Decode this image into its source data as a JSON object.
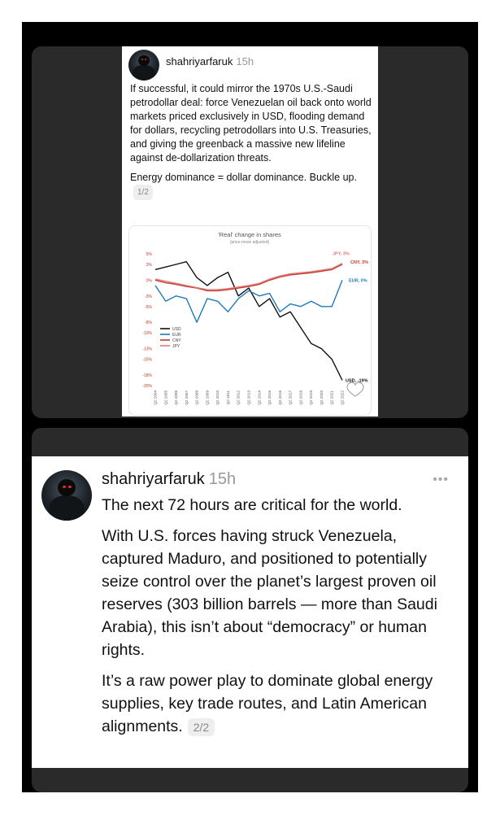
{
  "post1": {
    "username": "shahriyarfaruk",
    "time": "15h",
    "paragraphs": [
      "If successful, it could mirror the 1970s U.S.-Saudi petrodollar deal: force Venezuelan oil back onto world markets priced exclusively in USD, flooding demand for dollars, recycling petrodollars into U.S. Treasuries, and giving the greenback a massive new lifeline against de-dollarization threats."
    ],
    "last_paragraph": "Energy dominance = dollar dominance. Buckle up.",
    "page_badge": "1/2"
  },
  "chart_data": {
    "type": "line",
    "title": "'Real' change in shares",
    "subtitle": "(price-move adjusted)",
    "ylim": [
      -20,
      5
    ],
    "yticks": [
      "5%",
      "3%",
      "0%",
      "-3%",
      "-5%",
      "-8%",
      "-10%",
      "-13%",
      "-15%",
      "-18%",
      "-20%"
    ],
    "ytick_values": [
      5,
      3,
      0,
      -3,
      -5,
      -8,
      -10,
      -13,
      -15,
      -18,
      -20
    ],
    "x": [
      "Q2 2004",
      "Q2 2005",
      "Q2 2006",
      "Q2 2007",
      "Q2 2008",
      "Q2 2009",
      "Q2 2010",
      "Q2 2011",
      "Q2 2012",
      "Q2 2013",
      "Q2 2014",
      "Q2 2015",
      "Q2 2016",
      "Q2 2017",
      "Q2 2018",
      "Q2 2019",
      "Q2 2020",
      "Q2 2021",
      "Q2 2022"
    ],
    "legend_placement": "bottom-left",
    "series": [
      {
        "name": "USD",
        "color": "#111111",
        "end_label": "USD, -19%",
        "values": [
          2,
          2.5,
          3,
          3.5,
          0.5,
          -1,
          0.5,
          1.5,
          -3,
          -1.5,
          -5,
          -3.5,
          -7,
          -6,
          -9,
          -12,
          -13,
          -15,
          -19
        ]
      },
      {
        "name": "EUR",
        "color": "#1f7ab8",
        "end_label": "EUR, 0%",
        "values": [
          -1,
          -4,
          -3,
          -3.5,
          -8,
          -3.5,
          -4,
          -6,
          -3.5,
          -2,
          -3,
          -2.5,
          -6,
          -4.5,
          -5,
          -4,
          -5,
          -5,
          0
        ]
      },
      {
        "name": "CNY",
        "color": "#c0392b",
        "end_label": "CNY, 3%",
        "values": [
          0,
          -0.5,
          -0.8,
          -1.2,
          -1.5,
          -2,
          -2,
          -1.8,
          -1.5,
          -1.2,
          -0.8,
          0,
          0.6,
          1,
          1.2,
          1.4,
          1.7,
          2,
          3
        ]
      },
      {
        "name": "JPY",
        "color": "#e07a7a",
        "end_label": "JPY, 3%",
        "values": [
          0.2,
          -0.2,
          -0.6,
          -1,
          -1.4,
          -1.8,
          -1.8,
          -1.6,
          -1.3,
          -1,
          -0.6,
          0.2,
          0.8,
          1.2,
          1.4,
          1.6,
          1.9,
          2.2,
          3.2
        ]
      }
    ]
  },
  "post2": {
    "username": "shahriyarfaruk",
    "time": "15h",
    "more": "•••",
    "paragraphs": [
      "The next 72 hours are critical for the world.",
      "With U.S. forces having struck Venezuela, captured Maduro, and positioned to potentially seize control over the planet’s largest proven oil reserves (303 billion barrels — more than Saudi Arabia), this isn’t about “democracy” or human rights."
    ],
    "last_paragraph": "It’s a raw power play to dominate global energy supplies, key trade routes, and Latin American alignments.",
    "page_badge": "2/2"
  }
}
